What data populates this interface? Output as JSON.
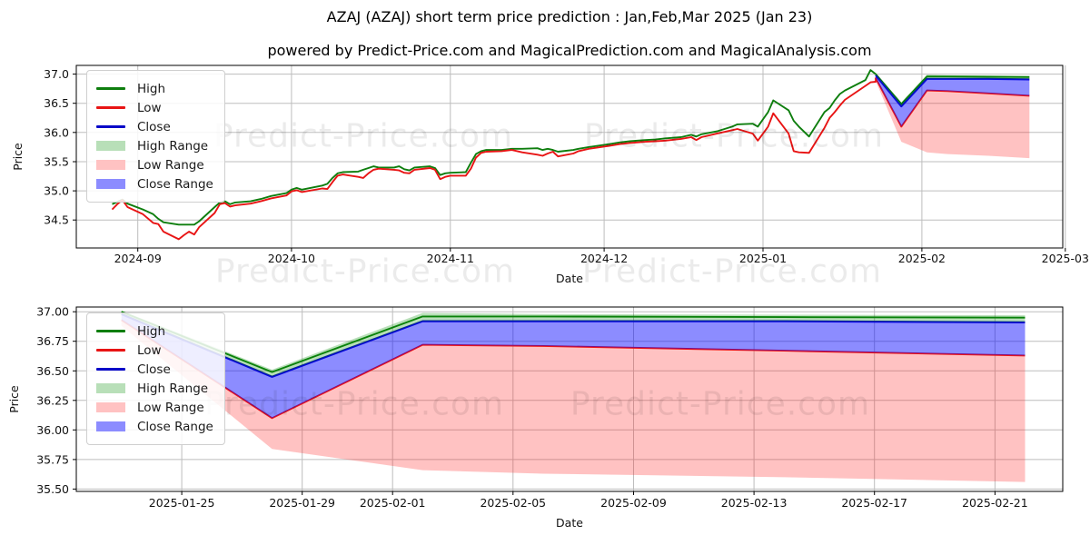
{
  "title": "AZAJ (AZAJ) short term price prediction : Jan,Feb,Mar 2025 (Jan 23)",
  "subtitle": "powered by Predict-Price.com and MagicalPrediction.com and MagicalAnalysis.com",
  "watermark_text": "Predict-Price.com",
  "axis": {
    "price_label": "Price",
    "date_label": "Date"
  },
  "colors": {
    "high": "#0e7e0e",
    "low": "#e81414",
    "close": "#0808c8",
    "high_range_fill": "rgba(0,140,0,0.28)",
    "low_range_fill": "rgba(255,30,30,0.27)",
    "close_range_fill": "rgba(0,0,255,0.45)",
    "grid": "#bdbdbd",
    "frame": "#000000",
    "tick_text": "#111111"
  },
  "legend": {
    "entries": [
      {
        "label": "High",
        "swatch": "line",
        "color": "#0e7e0e"
      },
      {
        "label": "Low",
        "swatch": "line",
        "color": "#e81414"
      },
      {
        "label": "Close",
        "swatch": "line",
        "color": "#0808c8"
      },
      {
        "label": "High Range",
        "swatch": "patch",
        "color": "#b8dfb8"
      },
      {
        "label": "Low Range",
        "swatch": "patch",
        "color": "#ffc2c2"
      },
      {
        "label": "Close Range",
        "swatch": "patch",
        "color": "#8c8cff"
      }
    ]
  },
  "chart_data": [
    {
      "type": "line",
      "name": "history-and-prediction",
      "xlabel": "Date",
      "ylabel": "Price",
      "xlim": [
        "2024-08-20T00:00:00Z",
        "2025-02-28T12:00:00Z"
      ],
      "ylim": [
        34.02,
        37.15
      ],
      "ytick_values": [
        34.5,
        35.0,
        35.5,
        36.0,
        36.5,
        37.0
      ],
      "ytick_labels": [
        "34.5",
        "35.0",
        "35.5",
        "36.0",
        "36.5",
        "37.0"
      ],
      "xticks": [
        {
          "d": "2024-09-01",
          "label": "2024-09"
        },
        {
          "d": "2024-10-01",
          "label": "2024-10"
        },
        {
          "d": "2024-11-01",
          "label": "2024-11"
        },
        {
          "d": "2024-12-01",
          "label": "2024-12"
        },
        {
          "d": "2025-01-01",
          "label": "2025-01"
        },
        {
          "d": "2025-02-01",
          "label": "2025-02"
        },
        {
          "d": "2025-03-01",
          "label": "2025-03"
        }
      ],
      "series": {
        "history_columns": [
          "date",
          "high",
          "low"
        ],
        "history": [
          [
            "2024-08-27",
            34.77,
            34.68
          ],
          [
            "2024-08-28",
            34.81,
            34.77
          ],
          [
            "2024-08-29",
            34.85,
            34.84
          ],
          [
            "2024-08-30",
            34.78,
            34.72
          ],
          [
            "2024-09-02",
            34.68,
            34.6
          ],
          [
            "2024-09-04",
            34.6,
            34.45
          ],
          [
            "2024-09-05",
            34.52,
            34.43
          ],
          [
            "2024-09-06",
            34.46,
            34.3
          ],
          [
            "2024-09-09",
            34.42,
            34.17
          ],
          [
            "2024-09-10",
            34.42,
            34.24
          ],
          [
            "2024-09-11",
            34.42,
            34.3
          ],
          [
            "2024-09-12",
            34.42,
            34.25
          ],
          [
            "2024-09-13",
            34.48,
            34.38
          ],
          [
            "2024-09-16",
            34.72,
            34.62
          ],
          [
            "2024-09-17",
            34.8,
            34.77
          ],
          [
            "2024-09-18",
            34.82,
            34.79
          ],
          [
            "2024-09-19",
            34.77,
            34.73
          ],
          [
            "2024-09-20",
            34.8,
            34.75
          ],
          [
            "2024-09-23",
            34.82,
            34.78
          ],
          [
            "2024-09-25",
            34.86,
            34.82
          ],
          [
            "2024-09-27",
            34.91,
            34.87
          ],
          [
            "2024-09-30",
            34.96,
            34.92
          ],
          [
            "2024-10-01",
            35.02,
            34.99
          ],
          [
            "2024-10-02",
            35.05,
            35.01
          ],
          [
            "2024-10-03",
            35.02,
            34.98
          ],
          [
            "2024-10-07",
            35.09,
            35.04
          ],
          [
            "2024-10-08",
            35.12,
            35.03
          ],
          [
            "2024-10-09",
            35.22,
            35.15
          ],
          [
            "2024-10-10",
            35.3,
            35.26
          ],
          [
            "2024-10-11",
            35.32,
            35.28
          ],
          [
            "2024-10-14",
            35.33,
            35.24
          ],
          [
            "2024-10-15",
            35.36,
            35.22
          ],
          [
            "2024-10-16",
            35.39,
            35.3
          ],
          [
            "2024-10-17",
            35.42,
            35.36
          ],
          [
            "2024-10-18",
            35.4,
            35.38
          ],
          [
            "2024-10-21",
            35.4,
            35.36
          ],
          [
            "2024-10-22",
            35.42,
            35.35
          ],
          [
            "2024-10-23",
            35.37,
            35.31
          ],
          [
            "2024-10-24",
            35.35,
            35.3
          ],
          [
            "2024-10-25",
            35.4,
            35.36
          ],
          [
            "2024-10-28",
            35.42,
            35.39
          ],
          [
            "2024-10-29",
            35.39,
            35.36
          ],
          [
            "2024-10-30",
            35.27,
            35.2
          ],
          [
            "2024-10-31",
            35.3,
            35.24
          ],
          [
            "2024-11-01",
            35.31,
            35.26
          ],
          [
            "2024-11-04",
            35.32,
            35.26
          ],
          [
            "2024-11-05",
            35.48,
            35.38
          ],
          [
            "2024-11-06",
            35.63,
            35.57
          ],
          [
            "2024-11-07",
            35.68,
            35.65
          ],
          [
            "2024-11-08",
            35.7,
            35.67
          ],
          [
            "2024-11-11",
            35.7,
            35.68
          ],
          [
            "2024-11-13",
            35.72,
            35.7
          ],
          [
            "2024-11-15",
            35.72,
            35.66
          ],
          [
            "2024-11-18",
            35.73,
            35.62
          ],
          [
            "2024-11-19",
            35.7,
            35.6
          ],
          [
            "2024-11-20",
            35.72,
            35.64
          ],
          [
            "2024-11-21",
            35.7,
            35.67
          ],
          [
            "2024-11-22",
            35.67,
            35.59
          ],
          [
            "2024-11-25",
            35.7,
            35.64
          ],
          [
            "2024-11-26",
            35.72,
            35.68
          ],
          [
            "2024-11-28",
            35.75,
            35.72
          ],
          [
            "2024-12-02",
            35.8,
            35.77
          ],
          [
            "2024-12-04",
            35.83,
            35.8
          ],
          [
            "2024-12-06",
            35.85,
            35.82
          ],
          [
            "2024-12-09",
            35.87,
            35.84
          ],
          [
            "2024-12-11",
            35.88,
            35.85
          ],
          [
            "2024-12-13",
            35.9,
            35.86
          ],
          [
            "2024-12-16",
            35.92,
            35.89
          ],
          [
            "2024-12-18",
            35.96,
            35.92
          ],
          [
            "2024-12-19",
            35.93,
            35.87
          ],
          [
            "2024-12-20",
            35.97,
            35.92
          ],
          [
            "2024-12-23",
            36.02,
            35.98
          ],
          [
            "2024-12-26",
            36.1,
            36.04
          ],
          [
            "2024-12-27",
            36.14,
            36.06
          ],
          [
            "2024-12-30",
            36.15,
            35.98
          ],
          [
            "2024-12-31",
            36.1,
            35.86
          ],
          [
            "2025-01-02",
            36.35,
            36.1
          ],
          [
            "2025-01-03",
            36.55,
            36.33
          ],
          [
            "2025-01-06",
            36.38,
            35.98
          ],
          [
            "2025-01-07",
            36.2,
            35.68
          ],
          [
            "2025-01-08",
            36.1,
            35.66
          ],
          [
            "2025-01-10",
            35.93,
            35.65
          ],
          [
            "2025-01-13",
            36.35,
            36.08
          ],
          [
            "2025-01-14",
            36.42,
            36.25
          ],
          [
            "2025-01-15",
            36.55,
            36.35
          ],
          [
            "2025-01-16",
            36.66,
            36.46
          ],
          [
            "2025-01-17",
            36.72,
            36.56
          ],
          [
            "2025-01-21",
            36.9,
            36.8
          ],
          [
            "2025-01-22",
            37.07,
            36.86
          ],
          [
            "2025-01-23",
            37.0,
            36.87
          ]
        ],
        "prediction_columns": [
          "date",
          "close",
          "high",
          "low",
          "low_range_low",
          "high_range_high"
        ],
        "prediction": [
          [
            "2025-01-23",
            36.98,
            37.0,
            36.93,
            36.88,
            37.01
          ],
          [
            "2025-01-28",
            36.45,
            36.49,
            36.1,
            35.84,
            36.51
          ],
          [
            "2025-02-02",
            36.92,
            36.96,
            36.72,
            35.66,
            36.99
          ],
          [
            "2025-02-06",
            36.92,
            36.96,
            36.71,
            35.63,
            36.98
          ],
          [
            "2025-02-14",
            36.92,
            36.955,
            36.67,
            35.6,
            36.975
          ],
          [
            "2025-02-22",
            36.91,
            36.95,
            36.63,
            35.56,
            36.97
          ]
        ]
      }
    },
    {
      "type": "line",
      "name": "prediction-zoom",
      "xlabel": "Date",
      "ylabel": "Price",
      "xlim": [
        "2025-01-21T12:00:00Z",
        "2025-02-23T06:00:00Z"
      ],
      "ylim": [
        35.48,
        37.04
      ],
      "ytick_values": [
        35.5,
        35.75,
        36.0,
        36.25,
        36.5,
        36.75,
        37.0
      ],
      "ytick_labels": [
        "35.50",
        "35.75",
        "36.00",
        "36.25",
        "36.50",
        "36.75",
        "37.00"
      ],
      "xticks": [
        {
          "d": "2025-01-25",
          "label": "2025-01-25"
        },
        {
          "d": "2025-01-29",
          "label": "2025-01-29"
        },
        {
          "d": "2025-02-01",
          "label": "2025-02-01"
        },
        {
          "d": "2025-02-05",
          "label": "2025-02-05"
        },
        {
          "d": "2025-02-09",
          "label": "2025-02-09"
        },
        {
          "d": "2025-02-13",
          "label": "2025-02-13"
        },
        {
          "d": "2025-02-17",
          "label": "2025-02-17"
        },
        {
          "d": "2025-02-21",
          "label": "2025-02-21"
        }
      ],
      "series": {
        "prediction_columns": [
          "date",
          "close",
          "high",
          "low",
          "low_range_low",
          "high_range_high"
        ],
        "prediction": [
          [
            "2025-01-23",
            36.98,
            37.0,
            36.93,
            36.88,
            37.01
          ],
          [
            "2025-01-28",
            36.45,
            36.49,
            36.1,
            35.84,
            36.51
          ],
          [
            "2025-02-02",
            36.92,
            36.96,
            36.72,
            35.66,
            36.99
          ],
          [
            "2025-02-06",
            36.92,
            36.96,
            36.71,
            35.63,
            36.98
          ],
          [
            "2025-02-14",
            36.92,
            36.955,
            36.67,
            35.6,
            36.975
          ],
          [
            "2025-02-22",
            36.91,
            36.95,
            36.63,
            35.56,
            36.97
          ]
        ]
      }
    }
  ]
}
